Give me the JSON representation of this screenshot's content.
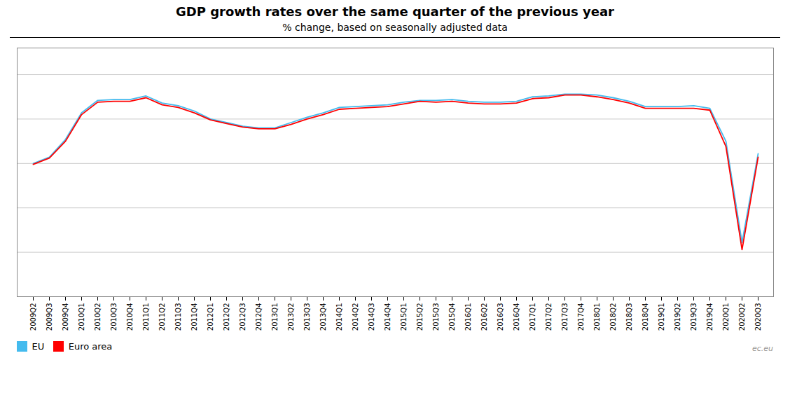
{
  "chart_data": {
    "type": "line",
    "title": "GDP growth rates over the same quarter of the previous year",
    "subtitle": "% change, based on seasonally adjusted data",
    "categories": [
      "2009Q2",
      "2009Q3",
      "2009Q4",
      "2010Q1",
      "2010Q2",
      "2010Q3",
      "2010Q4",
      "2011Q1",
      "2011Q2",
      "2011Q3",
      "2011Q4",
      "2012Q1",
      "2012Q2",
      "2012Q3",
      "2012Q4",
      "2013Q1",
      "2013Q2",
      "2013Q3",
      "2013Q4",
      "2014Q1",
      "2014Q2",
      "2014Q3",
      "2014Q4",
      "2015Q1",
      "2015Q2",
      "2015Q3",
      "2015Q4",
      "2016Q1",
      "2016Q2",
      "2016Q3",
      "2016Q4",
      "2017Q1",
      "2017Q2",
      "2017Q3",
      "2017Q4",
      "2018Q1",
      "2018Q2",
      "2018Q3",
      "2018Q4",
      "2019Q1",
      "2019Q2",
      "2019Q3",
      "2019Q4",
      "2020Q1",
      "2020Q2",
      "2020Q3"
    ],
    "series": [
      {
        "name": "EU",
        "color": "#44BBEE",
        "values": [
          -5.0,
          -4.3,
          -2.3,
          0.7,
          2.1,
          2.2,
          2.2,
          2.6,
          1.8,
          1.5,
          0.9,
          0.0,
          -0.4,
          -0.8,
          -1.0,
          -1.0,
          -0.4,
          0.2,
          0.7,
          1.3,
          1.4,
          1.5,
          1.6,
          1.9,
          2.1,
          2.1,
          2.2,
          2.0,
          1.9,
          1.9,
          2.0,
          2.5,
          2.6,
          2.8,
          2.8,
          2.7,
          2.4,
          2.0,
          1.4,
          1.4,
          1.4,
          1.5,
          1.2,
          -2.5,
          -13.9,
          -3.9
        ]
      },
      {
        "name": "Euro area",
        "color": "#FF0000",
        "values": [
          -5.1,
          -4.4,
          -2.5,
          0.5,
          1.9,
          2.0,
          2.0,
          2.4,
          1.6,
          1.3,
          0.7,
          -0.1,
          -0.5,
          -0.9,
          -1.1,
          -1.1,
          -0.6,
          0.0,
          0.5,
          1.1,
          1.2,
          1.3,
          1.4,
          1.7,
          2.0,
          1.9,
          2.0,
          1.8,
          1.7,
          1.7,
          1.8,
          2.3,
          2.4,
          2.7,
          2.7,
          2.5,
          2.2,
          1.8,
          1.2,
          1.2,
          1.2,
          1.2,
          1.0,
          -3.1,
          -14.7,
          -4.3
        ]
      }
    ],
    "ylim": [
      -20,
      8
    ],
    "yticks": [
      -15,
      -10,
      -5,
      0,
      5
    ],
    "grid": true,
    "tick_labels": "x",
    "legend": "bottom",
    "annotations": [
      "ec.eu"
    ]
  }
}
